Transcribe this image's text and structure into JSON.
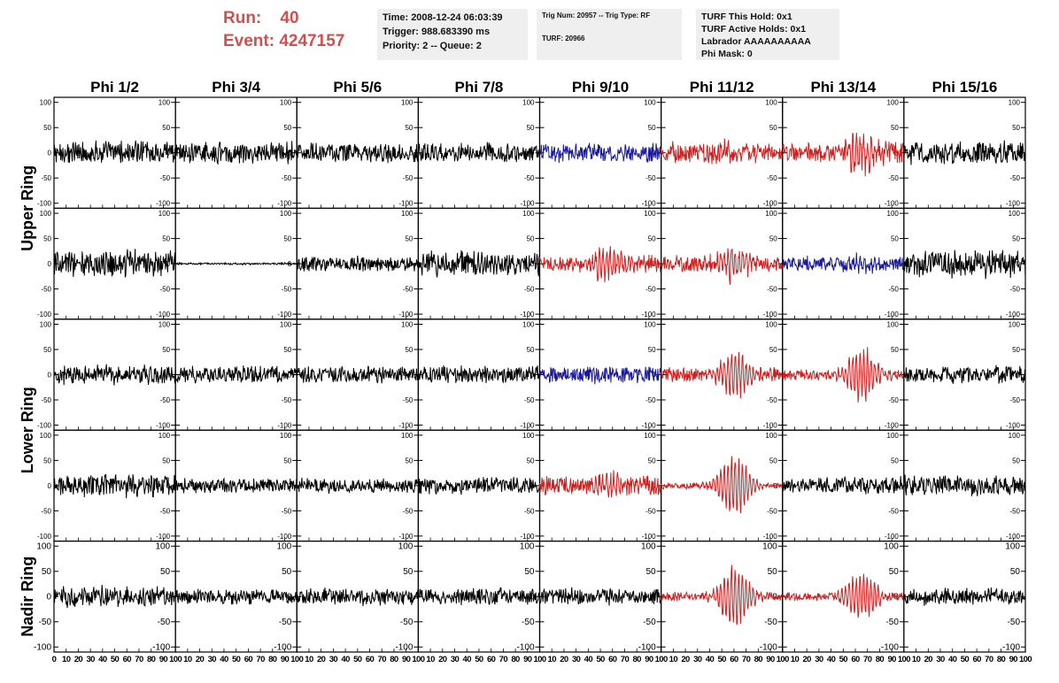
{
  "header": {
    "run_label": "Run:",
    "run_value": "40",
    "event_label": "Event:",
    "event_value": "4247157"
  },
  "info_box_1": {
    "time": "Time: 2008-12-24 06:03:39",
    "trigger": "Trigger: 988.683390 ms",
    "priority": "Priority: 2 -- Queue: 2"
  },
  "info_box_2": {
    "trig": "Trig Num: 20957 -- Trig Type: RF",
    "turf": "TURF: 20966"
  },
  "info_box_3": {
    "hold": "TURF This Hold: 0x1",
    "active": "TURF Active Holds: 0x1",
    "labrador": "Labrador AAAAAAAAAA",
    "mask": "Phi Mask: 0"
  },
  "chart_data": {
    "type": "line",
    "columns": [
      "Phi 1/2",
      "Phi 3/4",
      "Phi 5/6",
      "Phi 7/8",
      "Phi 9/10",
      "Phi 11/12",
      "Phi 13/14",
      "Phi 15/16"
    ],
    "rows": [
      "Upper Ring",
      "Upper Ring",
      "Lower Ring",
      "Lower Ring",
      "Nadir Ring"
    ],
    "row_titles": [
      {
        "label": "Upper Ring",
        "spans_rows": [
          0,
          1
        ]
      },
      {
        "label": "Lower Ring",
        "spans_rows": [
          2,
          3
        ]
      },
      {
        "label": "Nadir Ring",
        "spans_rows": [
          4
        ]
      }
    ],
    "xlim": [
      0,
      100
    ],
    "ylim": [
      -110,
      110
    ],
    "yticks": [
      -100,
      -50,
      0,
      50,
      100
    ],
    "xticks": [
      0,
      10,
      20,
      30,
      40,
      50,
      60,
      70,
      80,
      90,
      100
    ],
    "colors": {
      "normal": "#000000",
      "triggered": "#cc2222",
      "hold": "#1a1a99"
    },
    "panels": [
      [
        {
          "color": "normal",
          "amp": 22,
          "burst": 0,
          "center": 50
        },
        {
          "color": "normal",
          "amp": 20,
          "burst": 0,
          "center": 50
        },
        {
          "color": "normal",
          "amp": 18,
          "burst": 0,
          "center": 50
        },
        {
          "color": "normal",
          "amp": 18,
          "burst": 0,
          "center": 50
        },
        {
          "color": "hold",
          "amp": 18,
          "burst": 0,
          "center": 50
        },
        {
          "color": "triggered",
          "amp": 20,
          "burst": 10,
          "center": 60
        },
        {
          "color": "triggered",
          "amp": 20,
          "burst": 30,
          "center": 65
        },
        {
          "color": "normal",
          "amp": 22,
          "burst": 0,
          "center": 50
        }
      ],
      [
        {
          "color": "normal",
          "amp": 26,
          "burst": 0,
          "center": 50
        },
        {
          "color": "normal",
          "amp": 2,
          "burst": 0,
          "center": 50
        },
        {
          "color": "normal",
          "amp": 14,
          "burst": 0,
          "center": 50
        },
        {
          "color": "normal",
          "amp": 24,
          "burst": 0,
          "center": 50
        },
        {
          "color": "triggered",
          "amp": 16,
          "burst": 28,
          "center": 55
        },
        {
          "color": "triggered",
          "amp": 16,
          "burst": 30,
          "center": 60
        },
        {
          "color": "hold",
          "amp": 14,
          "burst": 8,
          "center": 65
        },
        {
          "color": "normal",
          "amp": 26,
          "burst": 0,
          "center": 50
        }
      ],
      [
        {
          "color": "normal",
          "amp": 18,
          "burst": 0,
          "center": 50
        },
        {
          "color": "normal",
          "amp": 16,
          "burst": 0,
          "center": 50
        },
        {
          "color": "normal",
          "amp": 16,
          "burst": 0,
          "center": 50
        },
        {
          "color": "normal",
          "amp": 16,
          "burst": 0,
          "center": 50
        },
        {
          "color": "hold",
          "amp": 16,
          "burst": 0,
          "center": 50
        },
        {
          "color": "triggered",
          "amp": 14,
          "burst": 38,
          "center": 60
        },
        {
          "color": "triggered",
          "amp": 10,
          "burst": 50,
          "center": 65
        },
        {
          "color": "normal",
          "amp": 16,
          "burst": 0,
          "center": 50
        }
      ],
      [
        {
          "color": "normal",
          "amp": 22,
          "burst": 0,
          "center": 50
        },
        {
          "color": "normal",
          "amp": 14,
          "burst": 0,
          "center": 50
        },
        {
          "color": "normal",
          "amp": 14,
          "burst": 0,
          "center": 50
        },
        {
          "color": "normal",
          "amp": 16,
          "burst": 0,
          "center": 50
        },
        {
          "color": "triggered",
          "amp": 18,
          "burst": 18,
          "center": 60
        },
        {
          "color": "triggered",
          "amp": 6,
          "burst": 55,
          "center": 60
        },
        {
          "color": "normal",
          "amp": 16,
          "burst": 0,
          "center": 50
        },
        {
          "color": "normal",
          "amp": 20,
          "burst": 0,
          "center": 50
        }
      ],
      [
        {
          "color": "normal",
          "amp": 20,
          "burst": 0,
          "center": 50
        },
        {
          "color": "normal",
          "amp": 14,
          "burst": 0,
          "center": 50
        },
        {
          "color": "normal",
          "amp": 16,
          "burst": 0,
          "center": 50
        },
        {
          "color": "normal",
          "amp": 16,
          "burst": 0,
          "center": 50
        },
        {
          "color": "normal",
          "amp": 16,
          "burst": 0,
          "center": 50
        },
        {
          "color": "triggered",
          "amp": 8,
          "burst": 55,
          "center": 60
        },
        {
          "color": "triggered",
          "amp": 8,
          "burst": 45,
          "center": 65
        },
        {
          "color": "normal",
          "amp": 16,
          "burst": 0,
          "center": 50
        }
      ]
    ]
  }
}
